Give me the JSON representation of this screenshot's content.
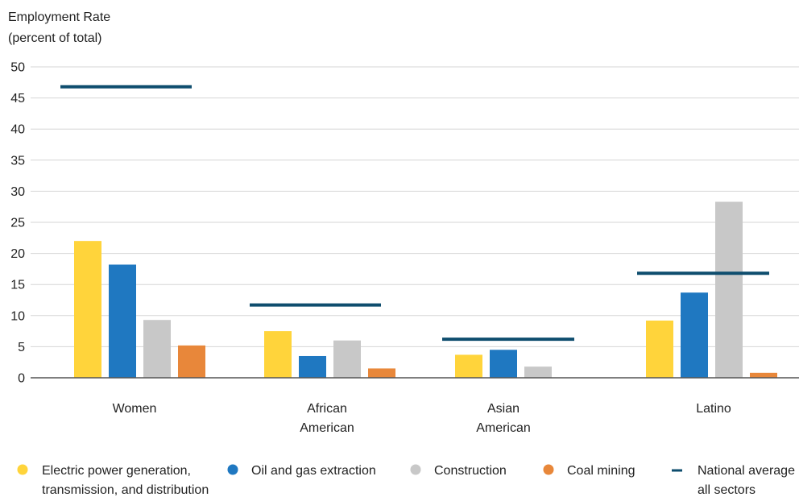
{
  "chart_data": {
    "type": "bar",
    "ylabel": [
      "Employment Rate",
      "(percent of total)"
    ],
    "ylim": [
      0,
      50
    ],
    "yticks": [
      0,
      5,
      10,
      15,
      20,
      25,
      30,
      35,
      40,
      45,
      50
    ],
    "grid": true,
    "categories": [
      [
        "Women"
      ],
      [
        "African",
        "American"
      ],
      [
        "Asian",
        "American"
      ],
      [
        "Latino"
      ]
    ],
    "series": [
      {
        "name": [
          "Electric power generation,",
          "transmission, and distribution"
        ],
        "color": "#FFD43B",
        "values": [
          22,
          7.5,
          3.7,
          9.2
        ]
      },
      {
        "name": [
          "Oil and gas extraction"
        ],
        "color": "#1F78C1",
        "values": [
          18.2,
          3.5,
          4.5,
          13.7
        ]
      },
      {
        "name": [
          "Construction"
        ],
        "color": "#C8C8C8",
        "values": [
          9.3,
          6,
          1.8,
          28.3
        ]
      },
      {
        "name": [
          "Coal mining"
        ],
        "color": "#E8873A",
        "values": [
          5.2,
          1.5,
          0,
          0.8
        ]
      }
    ],
    "reference_line": {
      "name": [
        "National average",
        "all sectors"
      ],
      "color": "#0E4D6E",
      "values": [
        46.8,
        11.7,
        6.2,
        16.8
      ]
    },
    "legend_position": "bottom"
  }
}
